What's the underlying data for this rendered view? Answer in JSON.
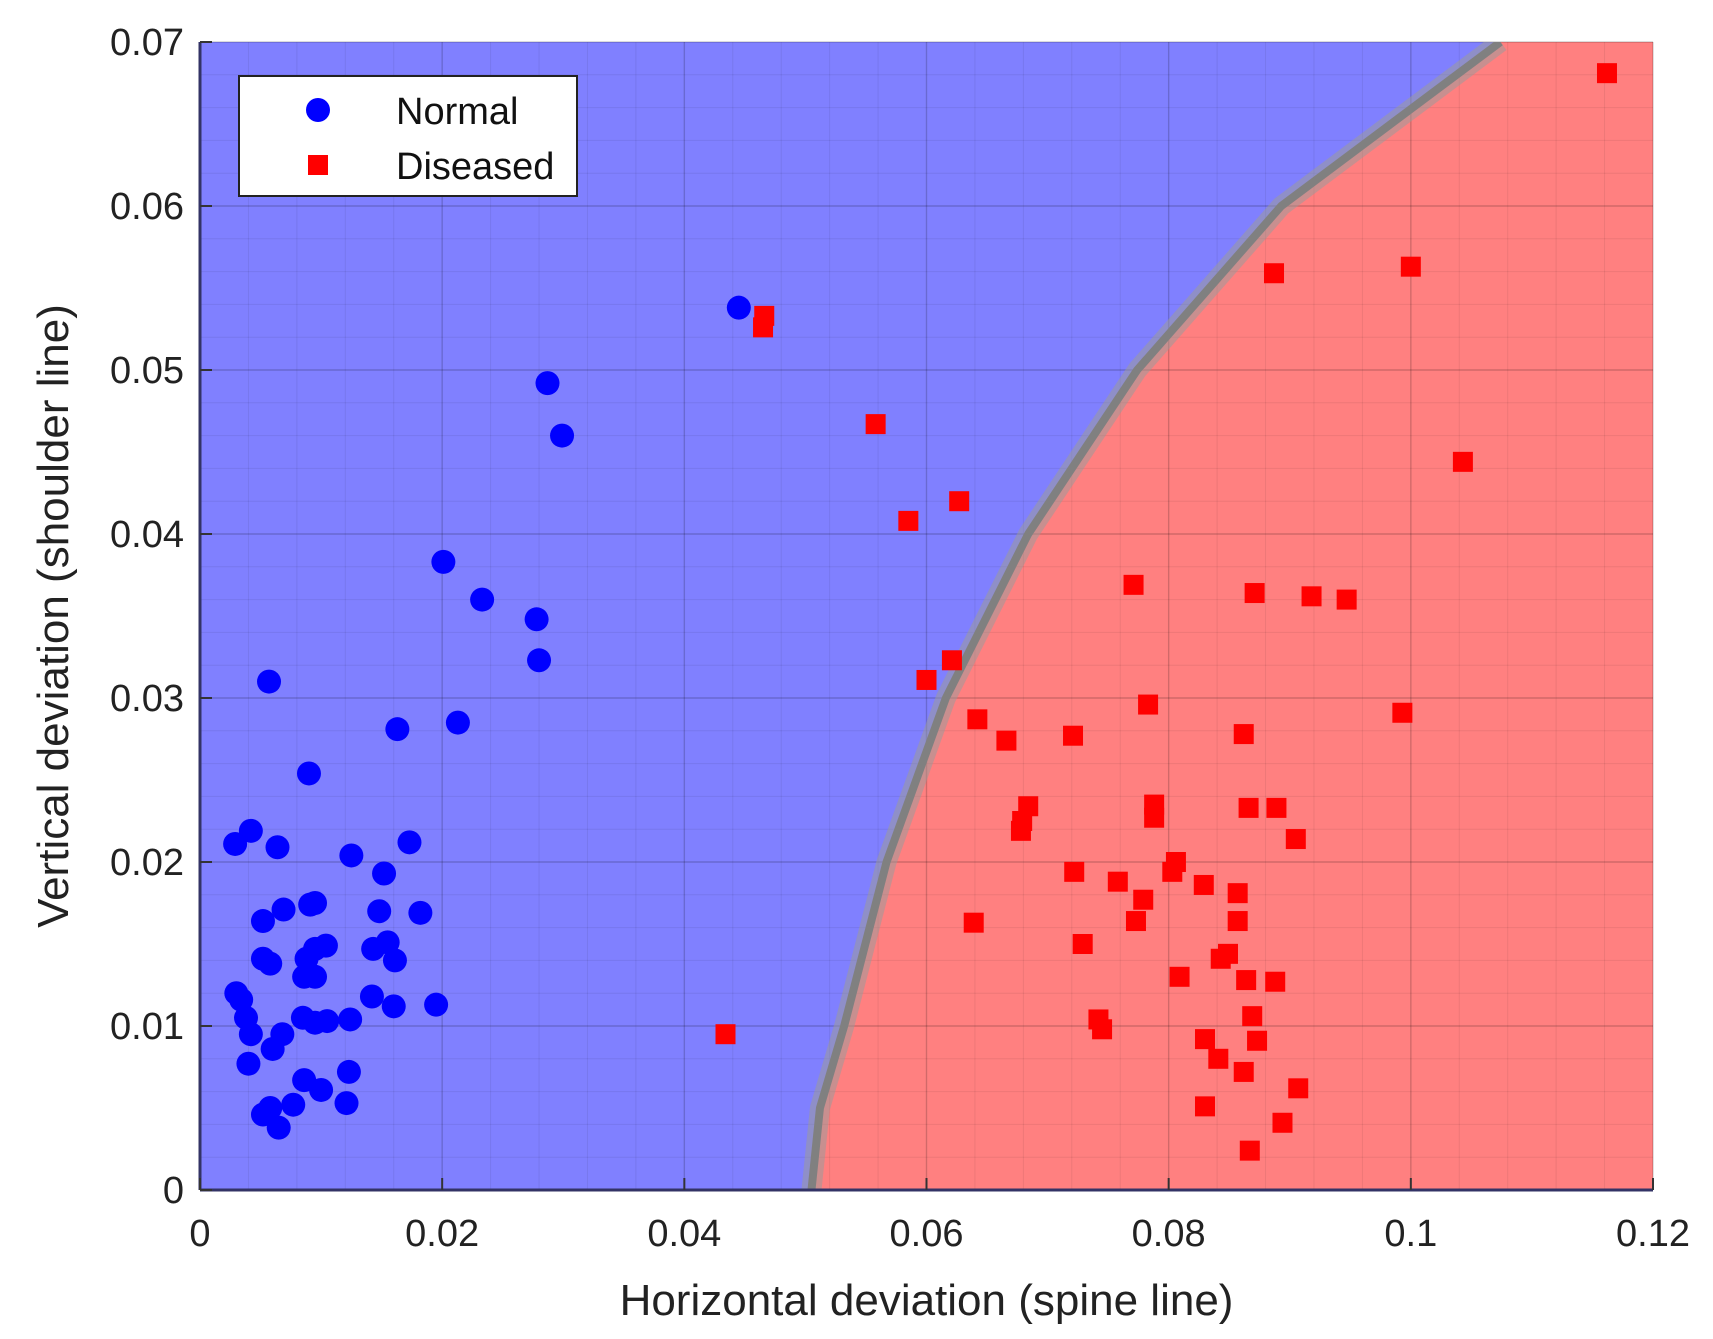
{
  "chart_data": {
    "type": "scatter",
    "title": "",
    "xlabel": "Horizontal deviation (spine line)",
    "ylabel": "Vertical deviation (shoulder line)",
    "xlim": [
      0,
      0.12
    ],
    "ylim": [
      0,
      0.07
    ],
    "x_ticks": [
      "0",
      "0.02",
      "0.04",
      "0.06",
      "0.08",
      "0.1",
      "0.12"
    ],
    "y_ticks": [
      "0",
      "0.01",
      "0.02",
      "0.03",
      "0.04",
      "0.05",
      "0.06",
      "0.07"
    ],
    "grid": true,
    "legend_position": "top-left",
    "background_regions": [
      {
        "class": "Normal",
        "color": "#8080ff"
      },
      {
        "class": "Diseased",
        "color": "#ff8080"
      }
    ],
    "decision_boundary": {
      "color": "#808080",
      "points": [
        [
          0.0505,
          0.0
        ],
        [
          0.0512,
          0.005
        ],
        [
          0.0532,
          0.01
        ],
        [
          0.0567,
          0.02
        ],
        [
          0.0616,
          0.03
        ],
        [
          0.0684,
          0.04
        ],
        [
          0.0774,
          0.05
        ],
        [
          0.0893,
          0.06
        ],
        [
          0.1074,
          0.07
        ]
      ]
    },
    "series": [
      {
        "name": "Normal",
        "marker": "circle",
        "color": "#0000ff",
        "points": [
          [
            0.0445,
            0.0538
          ],
          [
            0.0287,
            0.0492
          ],
          [
            0.0299,
            0.046
          ],
          [
            0.0201,
            0.0383
          ],
          [
            0.0233,
            0.036
          ],
          [
            0.0278,
            0.0348
          ],
          [
            0.028,
            0.0323
          ],
          [
            0.0057,
            0.031
          ],
          [
            0.0163,
            0.0281
          ],
          [
            0.0213,
            0.0285
          ],
          [
            0.009,
            0.0254
          ],
          [
            0.0029,
            0.0211
          ],
          [
            0.0042,
            0.0219
          ],
          [
            0.0064,
            0.0209
          ],
          [
            0.0125,
            0.0204
          ],
          [
            0.0173,
            0.0212
          ],
          [
            0.0152,
            0.0193
          ],
          [
            0.0069,
            0.0171
          ],
          [
            0.0091,
            0.0174
          ],
          [
            0.0095,
            0.0175
          ],
          [
            0.0052,
            0.0164
          ],
          [
            0.0148,
            0.017
          ],
          [
            0.0182,
            0.0169
          ],
          [
            0.0052,
            0.0141
          ],
          [
            0.0058,
            0.0138
          ],
          [
            0.0088,
            0.0141
          ],
          [
            0.0095,
            0.0147
          ],
          [
            0.0104,
            0.0149
          ],
          [
            0.0143,
            0.0147
          ],
          [
            0.0155,
            0.0151
          ],
          [
            0.0161,
            0.014
          ],
          [
            0.0086,
            0.013
          ],
          [
            0.0095,
            0.013
          ],
          [
            0.003,
            0.012
          ],
          [
            0.0034,
            0.0116
          ],
          [
            0.0038,
            0.0105
          ],
          [
            0.0042,
            0.0095
          ],
          [
            0.0068,
            0.0095
          ],
          [
            0.0085,
            0.0105
          ],
          [
            0.0095,
            0.0102
          ],
          [
            0.0105,
            0.0103
          ],
          [
            0.0124,
            0.0104
          ],
          [
            0.0142,
            0.0118
          ],
          [
            0.016,
            0.0112
          ],
          [
            0.0195,
            0.0113
          ],
          [
            0.006,
            0.0086
          ],
          [
            0.004,
            0.0077
          ],
          [
            0.0086,
            0.0067
          ],
          [
            0.0123,
            0.0072
          ],
          [
            0.01,
            0.0061
          ],
          [
            0.0077,
            0.0052
          ],
          [
            0.0052,
            0.0046
          ],
          [
            0.0058,
            0.005
          ],
          [
            0.0065,
            0.0038
          ],
          [
            0.0121,
            0.0053
          ]
        ]
      },
      {
        "name": "Diseased",
        "marker": "square",
        "color": "#ff0000",
        "points": [
          [
            0.1162,
            0.0681
          ],
          [
            0.1,
            0.0563
          ],
          [
            0.0887,
            0.0559
          ],
          [
            0.0466,
            0.0533
          ],
          [
            0.0465,
            0.0526
          ],
          [
            0.0558,
            0.0467
          ],
          [
            0.1043,
            0.0444
          ],
          [
            0.0627,
            0.042
          ],
          [
            0.0585,
            0.0408
          ],
          [
            0.0771,
            0.0369
          ],
          [
            0.0871,
            0.0364
          ],
          [
            0.0918,
            0.0362
          ],
          [
            0.0947,
            0.036
          ],
          [
            0.0621,
            0.0323
          ],
          [
            0.06,
            0.0311
          ],
          [
            0.0783,
            0.0296
          ],
          [
            0.0642,
            0.0287
          ],
          [
            0.0666,
            0.0274
          ],
          [
            0.0721,
            0.0277
          ],
          [
            0.0862,
            0.0278
          ],
          [
            0.0993,
            0.0291
          ],
          [
            0.0684,
            0.0234
          ],
          [
            0.0679,
            0.0225
          ],
          [
            0.0678,
            0.0219
          ],
          [
            0.0788,
            0.0235
          ],
          [
            0.0788,
            0.0227
          ],
          [
            0.0866,
            0.0233
          ],
          [
            0.0889,
            0.0233
          ],
          [
            0.0905,
            0.0214
          ],
          [
            0.0722,
            0.0194
          ],
          [
            0.0758,
            0.0188
          ],
          [
            0.0779,
            0.0177
          ],
          [
            0.0773,
            0.0164
          ],
          [
            0.0639,
            0.0163
          ],
          [
            0.0806,
            0.02
          ],
          [
            0.0803,
            0.0194
          ],
          [
            0.0829,
            0.0186
          ],
          [
            0.0857,
            0.0181
          ],
          [
            0.0857,
            0.0164
          ],
          [
            0.0729,
            0.015
          ],
          [
            0.0843,
            0.0141
          ],
          [
            0.0849,
            0.0144
          ],
          [
            0.0809,
            0.013
          ],
          [
            0.0864,
            0.0128
          ],
          [
            0.0888,
            0.0127
          ],
          [
            0.0742,
            0.0104
          ],
          [
            0.0745,
            0.0098
          ],
          [
            0.0869,
            0.0106
          ],
          [
            0.0434,
            0.0095
          ],
          [
            0.083,
            0.0092
          ],
          [
            0.0873,
            0.0091
          ],
          [
            0.0841,
            0.008
          ],
          [
            0.0862,
            0.0072
          ],
          [
            0.0907,
            0.0062
          ],
          [
            0.083,
            0.0051
          ],
          [
            0.0894,
            0.0041
          ],
          [
            0.0867,
            0.0024
          ]
        ]
      }
    ]
  }
}
